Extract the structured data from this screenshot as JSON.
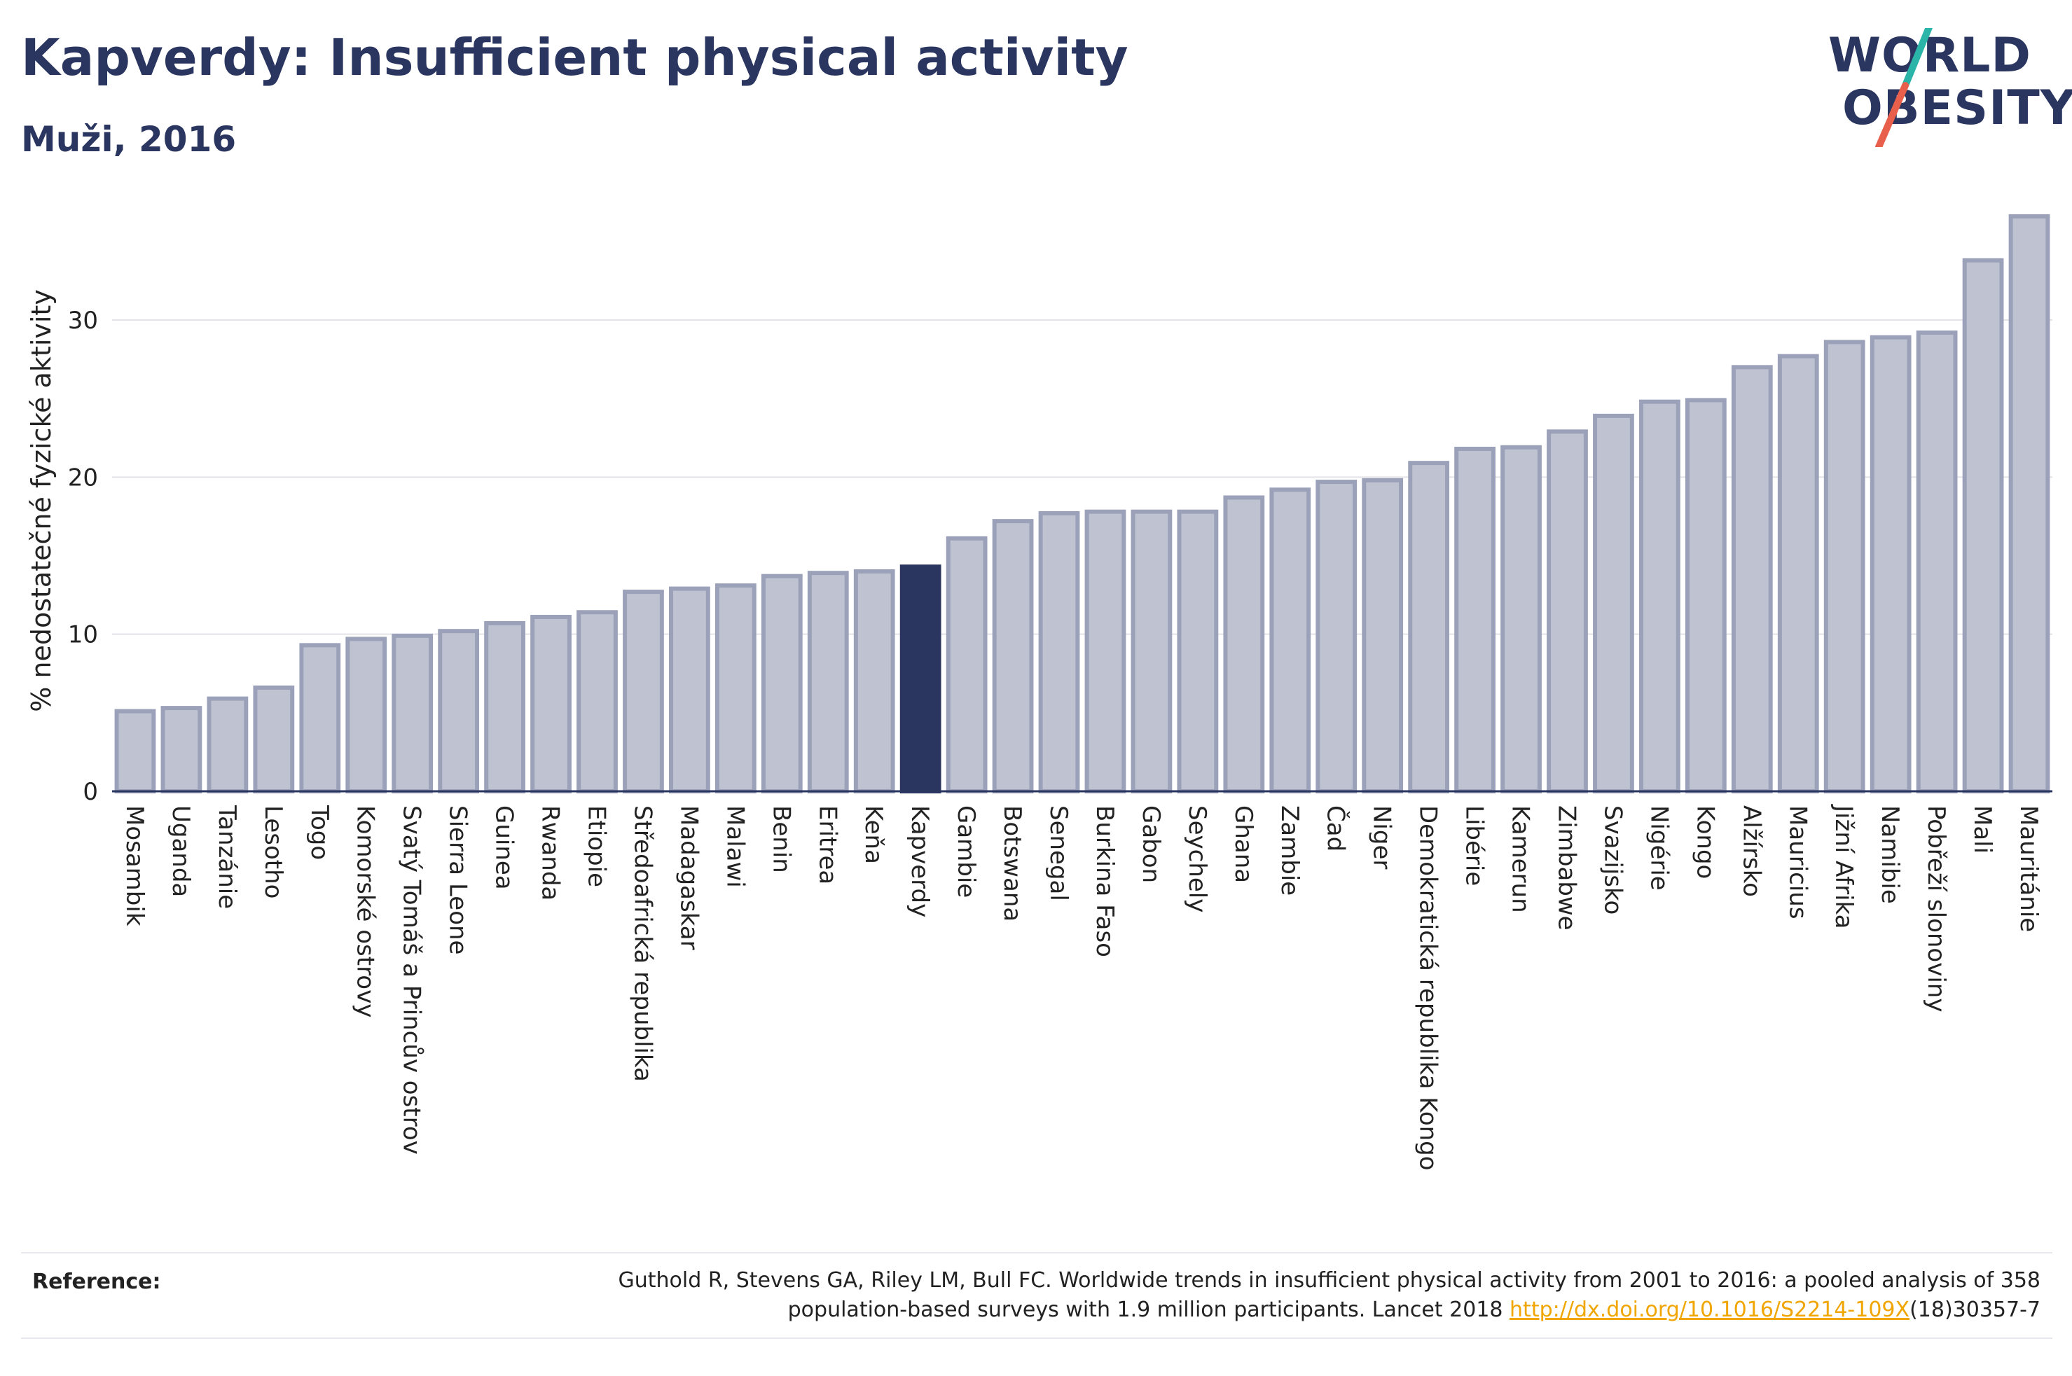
{
  "header": {
    "title": "Kapverdy: Insufficient physical activity",
    "subtitle": "Muži, 2016"
  },
  "logo": {
    "line1": "WORLD",
    "line2": "OBESITY",
    "slash_colors": [
      "#2ab5a8",
      "#e8604c"
    ]
  },
  "colors": {
    "bar": "#bfc3d1",
    "bar_stroke": "#9ba1b8",
    "highlight": "#2a3560",
    "grid": "#e3e3e8",
    "axis": "#2a3560",
    "link": "#f0a500"
  },
  "chart_data": {
    "type": "bar",
    "title": "Kapverdy: Insufficient physical activity",
    "subtitle": "Muži, 2016",
    "xlabel": "",
    "ylabel": "% nedostatečné fyzické aktivity",
    "ylim": [
      0,
      37
    ],
    "yticks": [
      0,
      10,
      20,
      30
    ],
    "grid": true,
    "highlight": "Kapverdy",
    "categories": [
      "Mosambik",
      "Uganda",
      "Tanzánie",
      "Lesotho",
      "Togo",
      "Komorské ostrovy",
      "Svatý Tomáš a Princův ostrov",
      "Sierra Leone",
      "Guinea",
      "Rwanda",
      "Etiopie",
      "Středoafrická republika",
      "Madagaskar",
      "Malawi",
      "Benin",
      "Eritrea",
      "Keňa",
      "Kapverdy",
      "Gambie",
      "Botswana",
      "Senegal",
      "Burkina Faso",
      "Gabon",
      "Seychely",
      "Ghana",
      "Zambie",
      "Čad",
      "Niger",
      "Demokratická republika Kongo",
      "Libérie",
      "Kamerun",
      "Zimbabwe",
      "Svazijsko",
      "Nigérie",
      "Kongo",
      "Alžírsko",
      "Mauricius",
      "Jižní Afrika",
      "Namibie",
      "Pobřeží slonoviny",
      "Mali",
      "Mauritánie"
    ],
    "values": [
      5.1,
      5.3,
      5.9,
      6.6,
      9.3,
      9.7,
      9.9,
      10.2,
      10.7,
      11.1,
      11.4,
      12.7,
      12.9,
      13.1,
      13.7,
      13.9,
      14.0,
      14.3,
      16.1,
      17.2,
      17.7,
      17.8,
      17.8,
      17.8,
      18.7,
      19.2,
      19.7,
      19.8,
      20.9,
      21.8,
      21.9,
      22.9,
      23.9,
      24.8,
      24.9,
      27.0,
      27.7,
      28.6,
      28.9,
      29.2,
      33.8,
      36.6
    ]
  },
  "reference": {
    "label": "Reference:",
    "line1": "Guthold R, Stevens GA, Riley LM, Bull FC. Worldwide trends in insufficient physical activity from 2001 to 2016: a pooled analysis of 358",
    "line2_prefix": "population-based surveys with 1.9 million participants. Lancet 2018 ",
    "link": "http://dx.doi.org/10.1016/S2214-109X",
    "line2_suffix": "(18)30357-7"
  }
}
